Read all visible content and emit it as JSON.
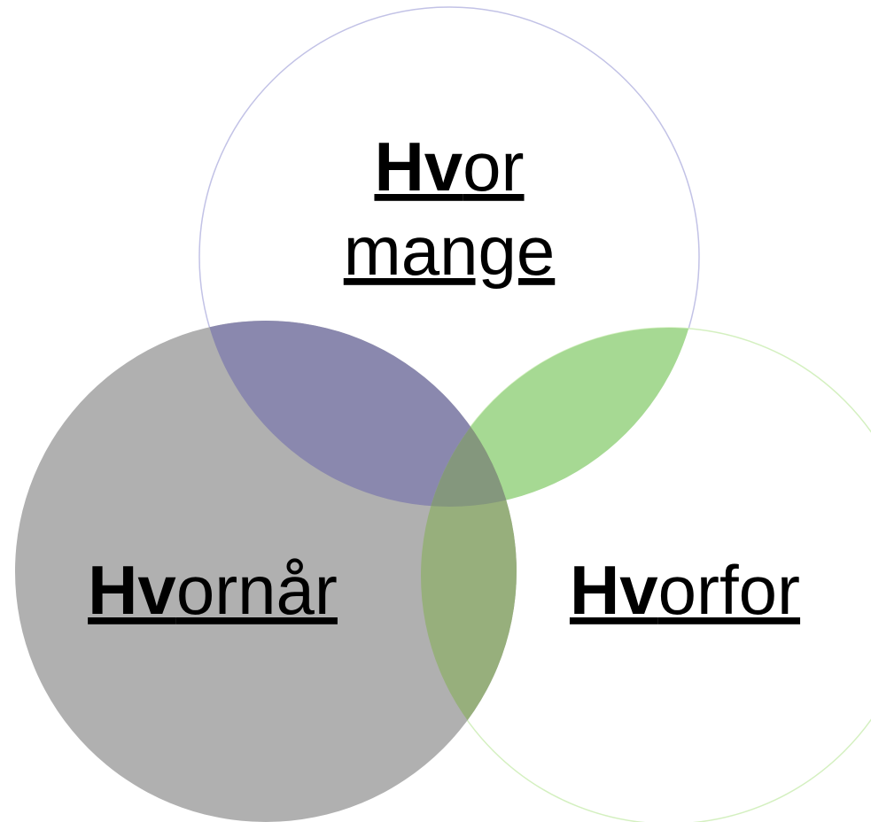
{
  "nodes": [
    {
      "lines": [
        "Hvor",
        "mange"
      ]
    },
    {
      "lines": [
        "Hvornår"
      ]
    },
    {
      "lines": [
        "Hvorfor"
      ]
    }
  ]
}
